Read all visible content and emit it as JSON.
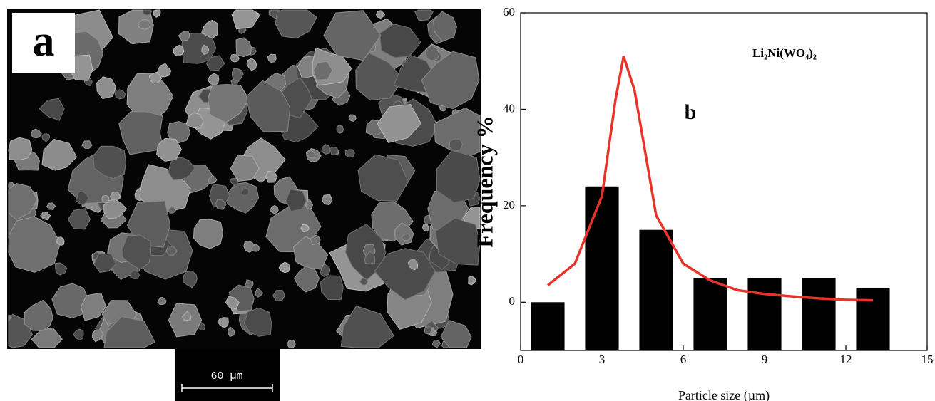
{
  "panel_a": {
    "label": "a",
    "scale_bar": "60 µm"
  },
  "chart_data": {
    "type": "bar",
    "annotation": "b",
    "formula_label": "Li₂Ni(WO₄)₂",
    "xlabel": "Particle size (µm)",
    "ylabel": "Frequency %",
    "x": [
      1,
      3,
      5,
      7,
      9,
      11,
      13
    ],
    "values": [
      0,
      24,
      15,
      5,
      5,
      5,
      3
    ],
    "color": "#000000",
    "fit": {
      "type": "line",
      "color": "#e8332a",
      "x": [
        1,
        2,
        3,
        3.5,
        3.8,
        4.2,
        5,
        6,
        7,
        8,
        9,
        10,
        11,
        12,
        13
      ],
      "values": [
        3.5,
        8,
        22,
        42,
        51,
        44,
        18,
        8,
        4.5,
        2.5,
        1.7,
        1.2,
        0.8,
        0.5,
        0.4
      ]
    },
    "xlim": [
      0,
      15
    ],
    "ylim": [
      -10,
      60
    ],
    "xticks": [
      0,
      3,
      6,
      9,
      12,
      15
    ],
    "yticks": [
      0,
      20,
      40,
      60
    ]
  }
}
